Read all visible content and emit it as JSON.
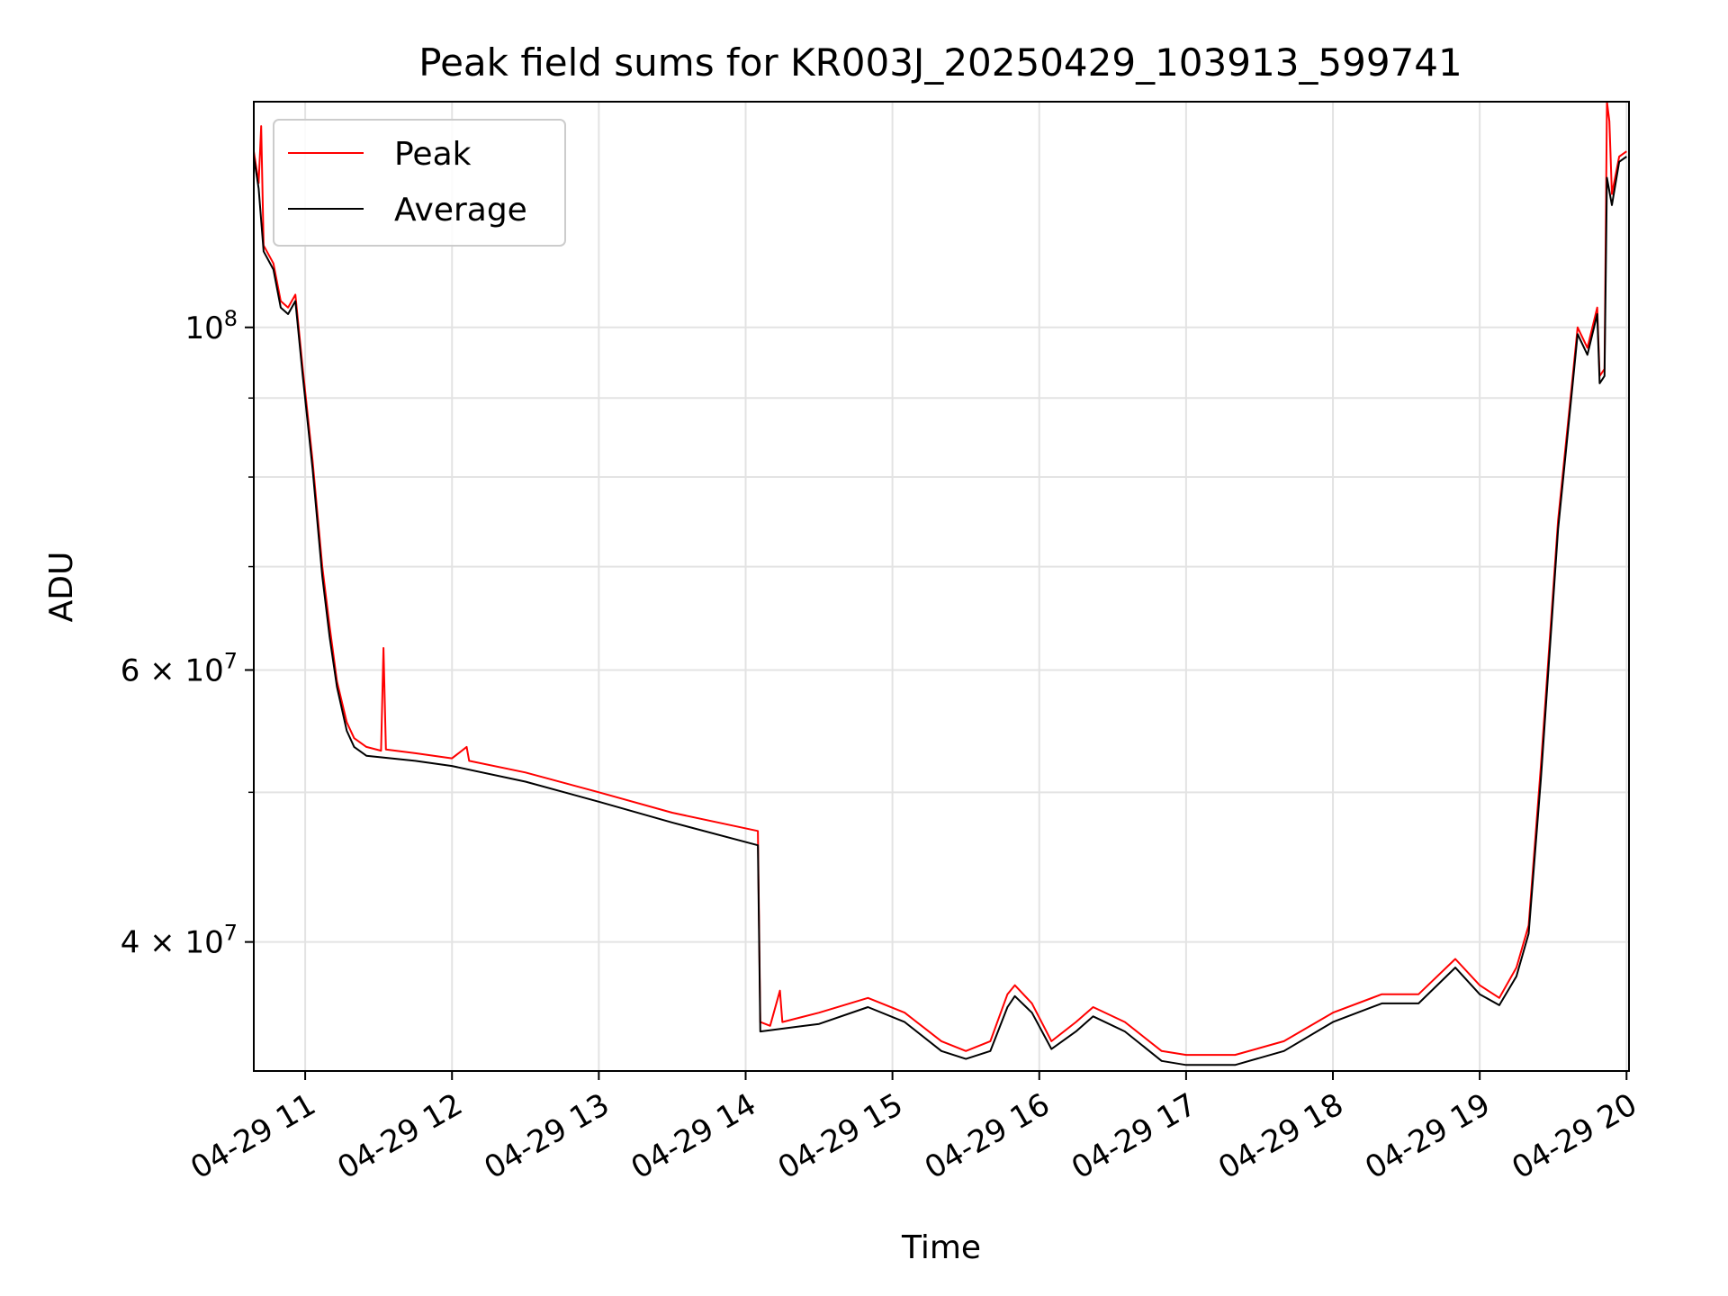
{
  "chart_data": {
    "type": "line",
    "title": "Peak field sums for KR003J_20250429_103913_599741",
    "xlabel": "Time",
    "ylabel": "ADU",
    "y_scale": "log",
    "xlim": [
      "2025-04-29 10:39",
      "2025-04-29 20:01"
    ],
    "ylim": [
      33000000.0,
      140000000.0
    ],
    "grid": true,
    "legend_position": "top-left",
    "x_ticks": [
      {
        "at": "2025-04-29 11:00",
        "label": "04-29 11"
      },
      {
        "at": "2025-04-29 12:00",
        "label": "04-29 12"
      },
      {
        "at": "2025-04-29 13:00",
        "label": "04-29 13"
      },
      {
        "at": "2025-04-29 14:00",
        "label": "04-29 14"
      },
      {
        "at": "2025-04-29 15:00",
        "label": "04-29 15"
      },
      {
        "at": "2025-04-29 16:00",
        "label": "04-29 16"
      },
      {
        "at": "2025-04-29 17:00",
        "label": "04-29 17"
      },
      {
        "at": "2025-04-29 18:00",
        "label": "04-29 18"
      },
      {
        "at": "2025-04-29 19:00",
        "label": "04-29 19"
      },
      {
        "at": "2025-04-29 20:00",
        "label": "04-29 20"
      }
    ],
    "y_ticks_major": [
      {
        "value": 40000000,
        "base": "4",
        "exp": "7"
      },
      {
        "value": 60000000,
        "base": "6",
        "exp": "7"
      },
      {
        "value": 100000000,
        "base": "10",
        "exp": "8"
      }
    ],
    "y_ticks_minor": [
      50000000,
      70000000,
      80000000,
      90000000
    ],
    "series": [
      {
        "name": "Peak",
        "color": "#ff0000",
        "points": [
          [
            "2025-04-29 10:39",
            130000000.0
          ],
          [
            "2025-04-29 10:41",
            124000000.0
          ],
          [
            "2025-04-29 10:42",
            135000000.0
          ],
          [
            "2025-04-29 10:43",
            113000000.0
          ],
          [
            "2025-04-29 10:47",
            110000000.0
          ],
          [
            "2025-04-29 10:50",
            104000000.0
          ],
          [
            "2025-04-29 10:53",
            103000000.0
          ],
          [
            "2025-04-29 10:56",
            105000000.0
          ],
          [
            "2025-04-29 10:59",
            94000000.0
          ],
          [
            "2025-04-29 11:03",
            82000000.0
          ],
          [
            "2025-04-29 11:07",
            70000000.0
          ],
          [
            "2025-04-29 11:10",
            64000000.0
          ],
          [
            "2025-04-29 11:13",
            59000000.0
          ],
          [
            "2025-04-29 11:17",
            55500000.0
          ],
          [
            "2025-04-29 11:20",
            54200000.0
          ],
          [
            "2025-04-29 11:25",
            53500000.0
          ],
          [
            "2025-04-29 11:31",
            53200000.0
          ],
          [
            "2025-04-29 11:32",
            62000000.0
          ],
          [
            "2025-04-29 11:33",
            53300000.0
          ],
          [
            "2025-04-29 11:45",
            53000000.0
          ],
          [
            "2025-04-29 12:00",
            52600000.0
          ],
          [
            "2025-04-29 12:06",
            53500000.0
          ],
          [
            "2025-04-29 12:07",
            52400000.0
          ],
          [
            "2025-04-29 12:30",
            51500000.0
          ],
          [
            "2025-04-29 13:00",
            50000000.0
          ],
          [
            "2025-04-29 13:30",
            48500000.0
          ],
          [
            "2025-04-29 14:05",
            47200000.0
          ],
          [
            "2025-04-29 14:06",
            35500000.0
          ],
          [
            "2025-04-29 14:10",
            35300000.0
          ],
          [
            "2025-04-29 14:14",
            37200000.0
          ],
          [
            "2025-04-29 14:15",
            35500000.0
          ],
          [
            "2025-04-29 14:30",
            36000000.0
          ],
          [
            "2025-04-29 14:50",
            36800000.0
          ],
          [
            "2025-04-29 15:05",
            36000000.0
          ],
          [
            "2025-04-29 15:20",
            34500000.0
          ],
          [
            "2025-04-29 15:30",
            34000000.0
          ],
          [
            "2025-04-29 15:40",
            34500000.0
          ],
          [
            "2025-04-29 15:47",
            37000000.0
          ],
          [
            "2025-04-29 15:50",
            37500000.0
          ],
          [
            "2025-04-29 15:57",
            36500000.0
          ],
          [
            "2025-04-29 16:05",
            34500000.0
          ],
          [
            "2025-04-29 16:15",
            35500000.0
          ],
          [
            "2025-04-29 16:22",
            36300000.0
          ],
          [
            "2025-04-29 16:35",
            35500000.0
          ],
          [
            "2025-04-29 16:50",
            34000000.0
          ],
          [
            "2025-04-29 17:00",
            33800000.0
          ],
          [
            "2025-04-29 17:20",
            33800000.0
          ],
          [
            "2025-04-29 17:40",
            34500000.0
          ],
          [
            "2025-04-29 18:00",
            36000000.0
          ],
          [
            "2025-04-29 18:20",
            37000000.0
          ],
          [
            "2025-04-29 18:35",
            37000000.0
          ],
          [
            "2025-04-29 18:50",
            39000000.0
          ],
          [
            "2025-04-29 19:00",
            37500000.0
          ],
          [
            "2025-04-29 19:08",
            36800000.0
          ],
          [
            "2025-04-29 19:15",
            38500000.0
          ],
          [
            "2025-04-29 19:20",
            41000000.0
          ],
          [
            "2025-04-29 19:25",
            52000000.0
          ],
          [
            "2025-04-29 19:32",
            75000000.0
          ],
          [
            "2025-04-29 19:38",
            93000000.0
          ],
          [
            "2025-04-29 19:40",
            100000000.0
          ],
          [
            "2025-04-29 19:44",
            97000000.0
          ],
          [
            "2025-04-29 19:48",
            103000000.0
          ],
          [
            "2025-04-29 19:49",
            93000000.0
          ],
          [
            "2025-04-29 19:51",
            94000000.0
          ],
          [
            "2025-04-29 19:52",
            140000000.0
          ],
          [
            "2025-04-29 19:53",
            136000000.0
          ],
          [
            "2025-04-29 19:54",
            122000000.0
          ],
          [
            "2025-04-29 19:57",
            129000000.0
          ],
          [
            "2025-04-29 20:00",
            130000000.0
          ]
        ]
      },
      {
        "name": "Average",
        "color": "#000000",
        "points": [
          [
            "2025-04-29 10:39",
            129000000.0
          ],
          [
            "2025-04-29 10:41",
            123000000.0
          ],
          [
            "2025-04-29 10:43",
            112000000.0
          ],
          [
            "2025-04-29 10:47",
            109000000.0
          ],
          [
            "2025-04-29 10:50",
            103000000.0
          ],
          [
            "2025-04-29 10:53",
            102000000.0
          ],
          [
            "2025-04-29 10:56",
            104000000.0
          ],
          [
            "2025-04-29 10:59",
            93000000.0
          ],
          [
            "2025-04-29 11:03",
            81000000.0
          ],
          [
            "2025-04-29 11:07",
            69000000.0
          ],
          [
            "2025-04-29 11:10",
            63000000.0
          ],
          [
            "2025-04-29 11:13",
            58500000.0
          ],
          [
            "2025-04-29 11:17",
            54800000.0
          ],
          [
            "2025-04-29 11:20",
            53500000.0
          ],
          [
            "2025-04-29 11:25",
            52800000.0
          ],
          [
            "2025-04-29 11:45",
            52400000.0
          ],
          [
            "2025-04-29 12:00",
            52000000.0
          ],
          [
            "2025-04-29 12:30",
            50800000.0
          ],
          [
            "2025-04-29 13:00",
            49300000.0
          ],
          [
            "2025-04-29 13:30",
            47800000.0
          ],
          [
            "2025-04-29 14:05",
            46200000.0
          ],
          [
            "2025-04-29 14:06",
            35000000.0
          ],
          [
            "2025-04-29 14:30",
            35400000.0
          ],
          [
            "2025-04-29 14:50",
            36300000.0
          ],
          [
            "2025-04-29 15:05",
            35500000.0
          ],
          [
            "2025-04-29 15:20",
            34000000.0
          ],
          [
            "2025-04-29 15:30",
            33600000.0
          ],
          [
            "2025-04-29 15:40",
            34000000.0
          ],
          [
            "2025-04-29 15:47",
            36300000.0
          ],
          [
            "2025-04-29 15:50",
            36900000.0
          ],
          [
            "2025-04-29 15:57",
            36000000.0
          ],
          [
            "2025-04-29 16:05",
            34100000.0
          ],
          [
            "2025-04-29 16:15",
            35000000.0
          ],
          [
            "2025-04-29 16:22",
            35800000.0
          ],
          [
            "2025-04-29 16:35",
            35000000.0
          ],
          [
            "2025-04-29 16:50",
            33500000.0
          ],
          [
            "2025-04-29 17:00",
            33300000.0
          ],
          [
            "2025-04-29 17:20",
            33300000.0
          ],
          [
            "2025-04-29 17:40",
            34000000.0
          ],
          [
            "2025-04-29 18:00",
            35500000.0
          ],
          [
            "2025-04-29 18:20",
            36500000.0
          ],
          [
            "2025-04-29 18:35",
            36500000.0
          ],
          [
            "2025-04-29 18:50",
            38500000.0
          ],
          [
            "2025-04-29 19:00",
            37000000.0
          ],
          [
            "2025-04-29 19:08",
            36400000.0
          ],
          [
            "2025-04-29 19:15",
            38000000.0
          ],
          [
            "2025-04-29 19:20",
            40500000.0
          ],
          [
            "2025-04-29 19:25",
            51000000.0
          ],
          [
            "2025-04-29 19:32",
            74000000.0
          ],
          [
            "2025-04-29 19:38",
            92000000.0
          ],
          [
            "2025-04-29 19:40",
            99000000.0
          ],
          [
            "2025-04-29 19:44",
            96000000.0
          ],
          [
            "2025-04-29 19:48",
            102000000.0
          ],
          [
            "2025-04-29 19:49",
            92000000.0
          ],
          [
            "2025-04-29 19:51",
            93000000.0
          ],
          [
            "2025-04-29 19:52",
            125000000.0
          ],
          [
            "2025-04-29 19:54",
            120000000.0
          ],
          [
            "2025-04-29 19:57",
            128000000.0
          ],
          [
            "2025-04-29 20:00",
            129000000.0
          ]
        ]
      }
    ]
  }
}
